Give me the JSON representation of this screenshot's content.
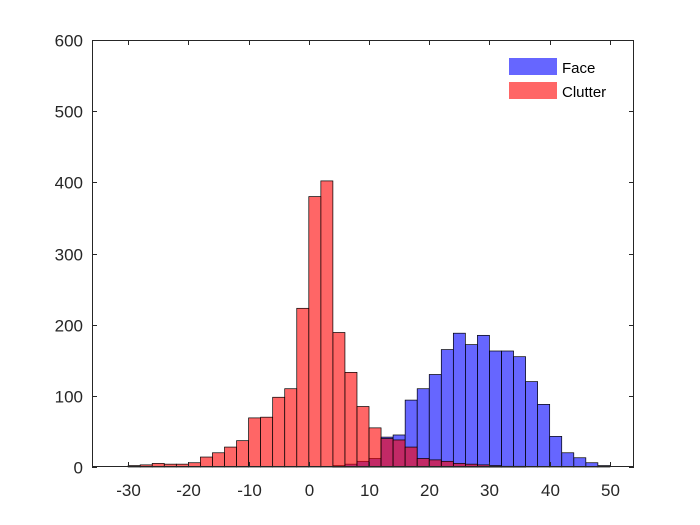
{
  "chart_data": {
    "type": "bar",
    "subtype": "overlaid-histogram",
    "title": "",
    "xlabel": "",
    "ylabel": "",
    "xlim": [
      -36,
      54
    ],
    "ylim": [
      0,
      600
    ],
    "xticks": [
      -30,
      -20,
      -10,
      0,
      10,
      20,
      30,
      40,
      50
    ],
    "yticks": [
      0,
      100,
      200,
      300,
      400,
      500,
      600
    ],
    "xtick_labels": [
      "-30",
      "-20",
      "-10",
      "0",
      "10",
      "20",
      "30",
      "40",
      "50"
    ],
    "ytick_labels": [
      "0",
      "100",
      "200",
      "300",
      "400",
      "500",
      "600"
    ],
    "grid": false,
    "box": true,
    "legend": {
      "position": "top-right",
      "entries": [
        "Face",
        "Clutter"
      ]
    },
    "bin_width": 2,
    "series": [
      {
        "name": "Face",
        "color": "#0000ff",
        "opacity": 0.6,
        "bins": [
          {
            "x0": -30,
            "value": 0
          },
          {
            "x0": -28,
            "value": 0
          },
          {
            "x0": -26,
            "value": 0
          },
          {
            "x0": -24,
            "value": 0
          },
          {
            "x0": -22,
            "value": 0
          },
          {
            "x0": -20,
            "value": 0
          },
          {
            "x0": -18,
            "value": 0
          },
          {
            "x0": -16,
            "value": 0
          },
          {
            "x0": -14,
            "value": 0
          },
          {
            "x0": -12,
            "value": 0
          },
          {
            "x0": -10,
            "value": 0
          },
          {
            "x0": -8,
            "value": 0
          },
          {
            "x0": -6,
            "value": 0
          },
          {
            "x0": -4,
            "value": 0
          },
          {
            "x0": -2,
            "value": 0
          },
          {
            "x0": 0,
            "value": 0
          },
          {
            "x0": 2,
            "value": 0
          },
          {
            "x0": 4,
            "value": 2
          },
          {
            "x0": 6,
            "value": 4
          },
          {
            "x0": 8,
            "value": 8
          },
          {
            "x0": 10,
            "value": 12
          },
          {
            "x0": 12,
            "value": 42
          },
          {
            "x0": 14,
            "value": 45
          },
          {
            "x0": 16,
            "value": 94
          },
          {
            "x0": 18,
            "value": 110
          },
          {
            "x0": 20,
            "value": 130
          },
          {
            "x0": 22,
            "value": 165
          },
          {
            "x0": 24,
            "value": 188
          },
          {
            "x0": 26,
            "value": 172
          },
          {
            "x0": 28,
            "value": 185
          },
          {
            "x0": 30,
            "value": 163
          },
          {
            "x0": 32,
            "value": 163
          },
          {
            "x0": 34,
            "value": 155
          },
          {
            "x0": 36,
            "value": 120
          },
          {
            "x0": 38,
            "value": 88
          },
          {
            "x0": 40,
            "value": 43
          },
          {
            "x0": 42,
            "value": 20
          },
          {
            "x0": 44,
            "value": 13
          },
          {
            "x0": 46,
            "value": 6
          },
          {
            "x0": 48,
            "value": 2
          }
        ]
      },
      {
        "name": "Clutter",
        "color": "#ff0000",
        "opacity": 0.6,
        "bins": [
          {
            "x0": -30,
            "value": 2
          },
          {
            "x0": -28,
            "value": 3
          },
          {
            "x0": -26,
            "value": 5
          },
          {
            "x0": -24,
            "value": 4
          },
          {
            "x0": -22,
            "value": 4
          },
          {
            "x0": -20,
            "value": 6
          },
          {
            "x0": -18,
            "value": 14
          },
          {
            "x0": -16,
            "value": 20
          },
          {
            "x0": -14,
            "value": 28
          },
          {
            "x0": -12,
            "value": 37
          },
          {
            "x0": -10,
            "value": 69
          },
          {
            "x0": -8,
            "value": 70
          },
          {
            "x0": -6,
            "value": 98
          },
          {
            "x0": -4,
            "value": 110
          },
          {
            "x0": -2,
            "value": 223
          },
          {
            "x0": 0,
            "value": 380
          },
          {
            "x0": 2,
            "value": 402
          },
          {
            "x0": 4,
            "value": 189
          },
          {
            "x0": 6,
            "value": 133
          },
          {
            "x0": 8,
            "value": 85
          },
          {
            "x0": 10,
            "value": 55
          },
          {
            "x0": 12,
            "value": 40
          },
          {
            "x0": 14,
            "value": 38
          },
          {
            "x0": 16,
            "value": 28
          },
          {
            "x0": 18,
            "value": 12
          },
          {
            "x0": 20,
            "value": 10
          },
          {
            "x0": 22,
            "value": 8
          },
          {
            "x0": 24,
            "value": 5
          },
          {
            "x0": 26,
            "value": 4
          },
          {
            "x0": 28,
            "value": 3
          },
          {
            "x0": 30,
            "value": 2
          },
          {
            "x0": 32,
            "value": 1
          },
          {
            "x0": 34,
            "value": 1
          },
          {
            "x0": 36,
            "value": 0
          },
          {
            "x0": 38,
            "value": 0
          },
          {
            "x0": 40,
            "value": 0
          },
          {
            "x0": 42,
            "value": 0
          },
          {
            "x0": 44,
            "value": 0
          },
          {
            "x0": 46,
            "value": 0
          },
          {
            "x0": 48,
            "value": 0
          }
        ]
      }
    ]
  }
}
